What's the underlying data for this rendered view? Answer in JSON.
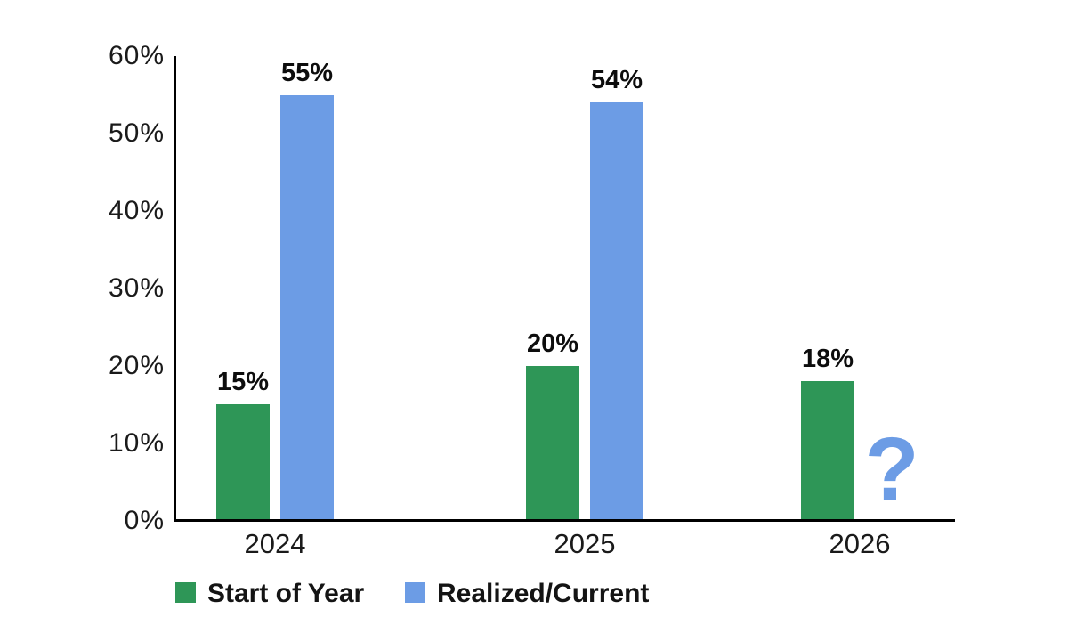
{
  "chart_data": {
    "type": "bar",
    "title": "",
    "xlabel": "",
    "ylabel": "",
    "categories": [
      "2024",
      "2025",
      "2026"
    ],
    "series": [
      {
        "name": "Start of Year",
        "color": "#2E9657",
        "values": [
          15,
          20,
          18
        ],
        "labels": [
          "15%",
          "20%",
          "18%"
        ]
      },
      {
        "name": "Realized/Current",
        "color": "#6C9CE5",
        "values": [
          55,
          54,
          null
        ],
        "labels": [
          "55%",
          "54%",
          "?"
        ]
      }
    ],
    "ylim": [
      0,
      60
    ],
    "yticks": [
      0,
      10,
      20,
      30,
      40,
      50,
      60
    ],
    "ytick_labels": [
      "0%",
      "10%",
      "20%",
      "30%",
      "40%",
      "50%",
      "60%"
    ],
    "grid": false,
    "legend_position": "bottom",
    "unknown_value_marker": "?"
  },
  "colors": {
    "background": "#ffffff",
    "axis_line": "#000000",
    "tick_text": "#1a1a1a",
    "value_label_text": "#0d0d0d",
    "legend_text": "#141414",
    "series_green": "#2E9657",
    "series_blue": "#6C9CE5"
  }
}
